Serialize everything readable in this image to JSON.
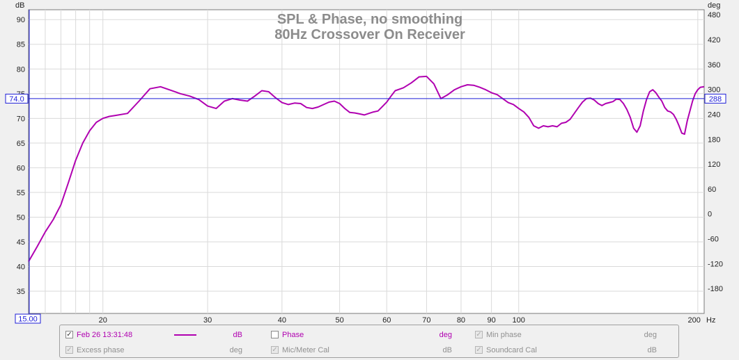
{
  "chart_data": {
    "type": "line",
    "title": "SPL & Phase, no smoothing",
    "subtitle": "80Hz Crossover On Receiver",
    "x_scale": "log",
    "xlim": [
      15,
      205
    ],
    "xunit": "Hz",
    "x_ticks": [
      20,
      30,
      40,
      50,
      60,
      70,
      80,
      90,
      100,
      200
    ],
    "ylabel_left": "dB",
    "ylim_left": [
      30.5,
      92
    ],
    "y_ticks_left": [
      35,
      40,
      45,
      50,
      55,
      60,
      65,
      70,
      75,
      80,
      85,
      90
    ],
    "ylabel_right": "deg",
    "ylim_right": [
      -240,
      492
    ],
    "y_ticks_right": [
      -180,
      -120,
      -60,
      0,
      60,
      120,
      180,
      240,
      300,
      360,
      420,
      480
    ],
    "grid": true,
    "cursor": {
      "x_label": "15.00",
      "y_left_label": "74.0",
      "y_right_label": "288",
      "y_value": 74.0
    },
    "series": [
      {
        "name": "Feb 26 13:31:48",
        "color": "#b000b0",
        "x": [
          15.0,
          15.5,
          16.0,
          16.5,
          17.0,
          17.5,
          18.0,
          18.5,
          19.0,
          19.5,
          20.0,
          20.5,
          21.0,
          22.0,
          23.0,
          24.0,
          25.0,
          26.0,
          27.0,
          28.0,
          29.0,
          30.0,
          31.0,
          32.0,
          33.0,
          34.0,
          35.0,
          36.0,
          37.0,
          38.0,
          39.0,
          40.0,
          41.0,
          42.0,
          43.0,
          44.0,
          45.0,
          46.0,
          47.0,
          48.0,
          49.0,
          50.0,
          51.0,
          52.0,
          53.0,
          54.0,
          55.0,
          56.0,
          57.0,
          58.0,
          59.0,
          60.0,
          61.0,
          62.0,
          64.0,
          66.0,
          68.0,
          70.0,
          72.0,
          74.0,
          76.0,
          78.0,
          80.0,
          82.0,
          84.0,
          86.0,
          88.0,
          90.0,
          92.0,
          94.0,
          96.0,
          98.0,
          100.0,
          102.0,
          104.0,
          106.0,
          108.0,
          110.0,
          112.0,
          114.0,
          116.0,
          118.0,
          120.0,
          122.0,
          124.0,
          126.0,
          128.0,
          130.0,
          132.0,
          134.0,
          136.0,
          138.0,
          140.0,
          142.0,
          144.0,
          146.0,
          148.0,
          150.0,
          152.0,
          154.0,
          156.0,
          158.0,
          160.0,
          162.0,
          164.0,
          166.0,
          168.0,
          170.0,
          172.0,
          174.0,
          176.0,
          178.0,
          180.0,
          182.0,
          184.0,
          186.0,
          188.0,
          190.0,
          192.0,
          194.0,
          196.0,
          198.0,
          200.0,
          202.0,
          205.0
        ],
        "y": [
          41.0,
          44.0,
          47.0,
          49.5,
          52.5,
          57.0,
          61.5,
          65.0,
          67.5,
          69.2,
          70.0,
          70.4,
          70.6,
          71.0,
          73.5,
          76.0,
          76.4,
          75.7,
          75.0,
          74.5,
          73.8,
          72.5,
          72.0,
          73.5,
          74.0,
          73.7,
          73.5,
          74.5,
          75.6,
          75.4,
          74.2,
          73.2,
          72.8,
          73.1,
          73.0,
          72.2,
          72.0,
          72.3,
          72.8,
          73.3,
          73.5,
          73.0,
          72.0,
          71.2,
          71.1,
          70.9,
          70.7,
          71.0,
          71.3,
          71.5,
          72.4,
          73.3,
          74.5,
          75.6,
          76.2,
          77.2,
          78.4,
          78.5,
          77.0,
          74.0,
          74.8,
          75.8,
          76.4,
          76.8,
          76.7,
          76.3,
          75.8,
          75.2,
          74.8,
          74.0,
          73.2,
          72.8,
          72.0,
          71.3,
          70.2,
          68.5,
          68.0,
          68.5,
          68.3,
          68.5,
          68.3,
          69.0,
          69.2,
          69.8,
          71.0,
          72.2,
          73.3,
          74.0,
          74.1,
          73.7,
          73.0,
          72.6,
          73.0,
          73.2,
          73.4,
          73.9,
          73.8,
          73.0,
          71.8,
          70.2,
          68.0,
          67.2,
          68.5,
          71.5,
          73.8,
          75.4,
          75.8,
          75.2,
          74.3,
          73.5,
          72.2,
          71.5,
          71.3,
          70.8,
          69.8,
          68.5,
          67.0,
          66.8,
          69.5,
          71.5,
          73.5,
          75.0,
          75.8,
          76.3,
          76.4
        ]
      }
    ]
  },
  "legend": {
    "rows": [
      [
        {
          "label": "Feb 26 13:31:48",
          "unit": "dB",
          "checked": true,
          "enabled": true,
          "color": "#b000b0",
          "has_swatch": true
        },
        {
          "label": "Phase",
          "unit": "deg",
          "checked": false,
          "enabled": true,
          "color": "#b000b0",
          "has_swatch": false
        },
        {
          "label": "Min phase",
          "unit": "deg",
          "checked": true,
          "enabled": false,
          "color": "#909090",
          "has_swatch": false
        },
        {
          "label": "",
          "unit": "",
          "checked": false,
          "enabled": false,
          "color": "",
          "has_swatch": false
        }
      ],
      [
        {
          "label": "Excess phase",
          "unit": "deg",
          "checked": true,
          "enabled": false,
          "color": "#909090",
          "has_swatch": false
        },
        {
          "label": "Mic/Meter Cal",
          "unit": "dB",
          "checked": true,
          "enabled": false,
          "color": "#909090",
          "has_swatch": false
        },
        {
          "label": "Soundcard Cal",
          "unit": "dB",
          "checked": true,
          "enabled": false,
          "color": "#909090",
          "has_swatch": false
        },
        {
          "label": "",
          "unit": "",
          "checked": false,
          "enabled": false,
          "color": "",
          "has_swatch": false
        }
      ]
    ]
  }
}
